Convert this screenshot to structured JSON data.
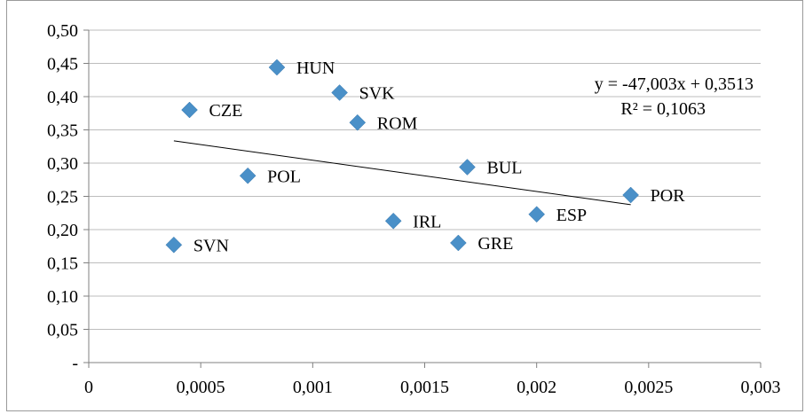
{
  "chart_data": {
    "type": "scatter",
    "title": "",
    "xlabel": "",
    "ylabel": "",
    "xlim": [
      0,
      0.003
    ],
    "ylim": [
      0,
      0.5
    ],
    "x_ticks": [
      0,
      0.0005,
      0.001,
      0.0015,
      0.002,
      0.0025,
      0.003
    ],
    "x_tick_labels": [
      "0",
      "0,0005",
      "0,001",
      "0,0015",
      "0,002",
      "0,0025",
      "0,003"
    ],
    "y_ticks": [
      0,
      0.05,
      0.1,
      0.15,
      0.2,
      0.25,
      0.3,
      0.35,
      0.4,
      0.45,
      0.5
    ],
    "y_tick_labels": [
      "-",
      "0,05",
      "0,10",
      "0,15",
      "0,20",
      "0,25",
      "0,30",
      "0,35",
      "0,40",
      "0,45",
      "0,50"
    ],
    "grid": "horizontal",
    "marker": "diamond",
    "marker_color": "#4a90c8",
    "points": [
      {
        "label": "HUN",
        "x": 0.00084,
        "y": 0.444
      },
      {
        "label": "SVK",
        "x": 0.00112,
        "y": 0.406
      },
      {
        "label": "CZE",
        "x": 0.00045,
        "y": 0.38
      },
      {
        "label": "ROM",
        "x": 0.0012,
        "y": 0.361
      },
      {
        "label": "BUL",
        "x": 0.00169,
        "y": 0.294
      },
      {
        "label": "POL",
        "x": 0.00071,
        "y": 0.281
      },
      {
        "label": "POR",
        "x": 0.00242,
        "y": 0.252
      },
      {
        "label": "ESP",
        "x": 0.002,
        "y": 0.223
      },
      {
        "label": "IRL",
        "x": 0.00136,
        "y": 0.213
      },
      {
        "label": "GRE",
        "x": 0.00165,
        "y": 0.18
      },
      {
        "label": "SVN",
        "x": 0.00038,
        "y": 0.177
      }
    ],
    "trendline": {
      "slope": -47.003,
      "intercept": 0.3513,
      "x_range": [
        0.00038,
        0.00242
      ],
      "equation": "y = -47,003x + 0,3513",
      "r_squared": "R² = 0,1063"
    }
  }
}
